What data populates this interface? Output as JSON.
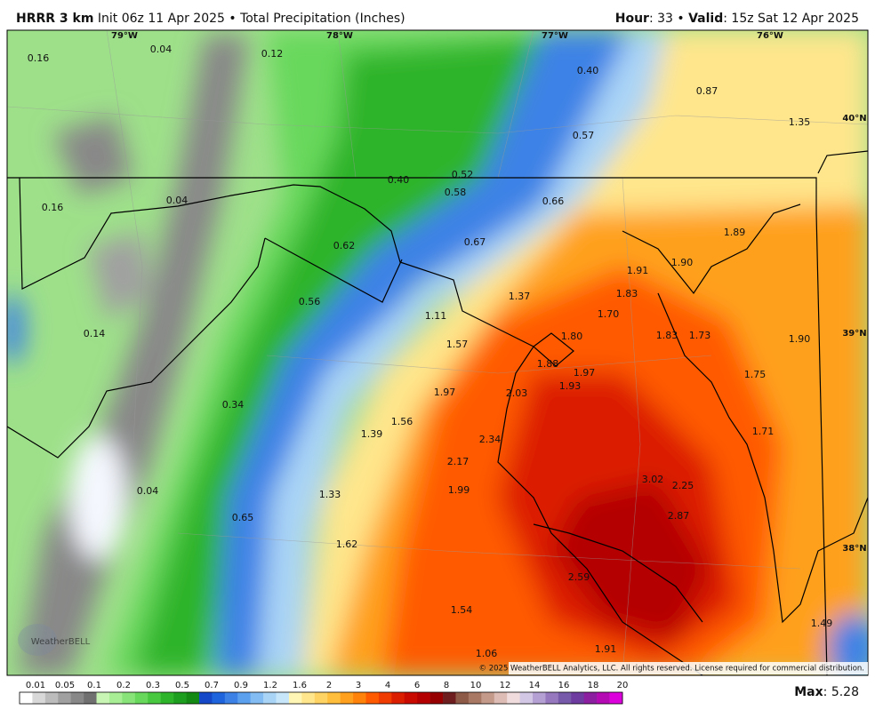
{
  "header": {
    "model": "HRRR 3 km",
    "subtitle": "Init 06z 11 Apr 2025 • Total Precipitation (Inches)",
    "hour_label": "Hour",
    "hour_value": ": 33 •",
    "valid_label": "Valid",
    "valid_value": ": 15z Sat 12 Apr 2025"
  },
  "longitudes": [
    "79°W",
    "78°W",
    "77°W",
    "76°W"
  ],
  "latitudes": [
    "40°N",
    "39°N",
    "38°N"
  ],
  "point_values": [
    "0.16",
    "0.04",
    "0.12",
    "0.40",
    "0.87",
    "1.35",
    "0.57",
    "0.52",
    "0.40",
    "0.58",
    "0.16",
    "0.04",
    "0.66",
    "1.89",
    "0.62",
    "0.67",
    "1.91",
    "1.90",
    "1.37",
    "1.83",
    "0.56",
    "1.11",
    "1.70",
    "0.14",
    "1.57",
    "1.80",
    "1.83",
    "1.73",
    "1.90",
    "1.88",
    "1.97",
    "1.75",
    "1.93",
    "1.97",
    "2.03",
    "0.34",
    "1.56",
    "1.39",
    "1.71",
    "2.34",
    "2.17",
    "3.02",
    "2.25",
    "0.04",
    "1.99",
    "1.33",
    "2.87",
    "0.65",
    "1.62",
    "2.59",
    "1.54",
    "1.49",
    "1.91",
    "1.06"
  ],
  "logo": "WeatherBELL",
  "copyright": "© 2025 WeatherBELL Analytics, LLC. All rights reserved. License required for commercial distribution.",
  "colorbar": {
    "labels": [
      "0.01",
      "0.05",
      "0.1",
      "0.2",
      "0.3",
      "0.5",
      "0.7",
      "0.9",
      "1.2",
      "1.6",
      "2",
      "3",
      "4",
      "6",
      "8",
      "10",
      "12",
      "14",
      "16",
      "18",
      "20"
    ],
    "colors": [
      "#ffffff",
      "#d8d8d8",
      "#bcbcbc",
      "#a0a0a0",
      "#888888",
      "#707070",
      "#c8f5b4",
      "#a8ee94",
      "#88e478",
      "#68d85c",
      "#48c840",
      "#2eb42a",
      "#1e9e1e",
      "#148a14",
      "#1448c8",
      "#1e64dc",
      "#3c82e6",
      "#5aa0ee",
      "#82bcf2",
      "#aad4f6",
      "#c8e6fa",
      "#fff5b4",
      "#ffe68c",
      "#ffd264",
      "#ffbe3c",
      "#ffa01e",
      "#ff820a",
      "#ff5a00",
      "#f03c00",
      "#dc1e00",
      "#c80a00",
      "#b40000",
      "#960000",
      "#6e1e1e",
      "#8c5a46",
      "#a87864",
      "#c49a8a",
      "#dcbcb4",
      "#f0dcdc",
      "#d2c8e6",
      "#b4a0d2",
      "#9678be",
      "#785aaa",
      "#6e3ca0",
      "#8c1ea0",
      "#b40ab4",
      "#dc00dc"
    ]
  },
  "max_label": "Max",
  "max_value": ": 5.28"
}
